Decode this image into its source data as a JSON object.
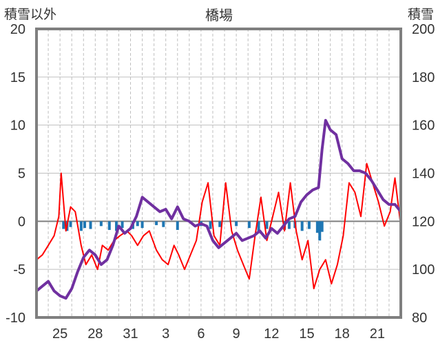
{
  "chart_data": {
    "type": "line",
    "title": "橋場",
    "ylabel_left": "積雪以外",
    "ylabel_right": "積雪",
    "ylim_left": [
      -10,
      20
    ],
    "ylim_right": [
      80,
      200
    ],
    "left_ticks": [
      -10,
      -5,
      0,
      5,
      10,
      15,
      20
    ],
    "right_ticks": [
      80,
      100,
      120,
      140,
      160,
      180,
      200
    ],
    "x_range": [
      23,
      54
    ],
    "x_tick_labels": [
      "25",
      "28",
      "31",
      "3",
      "6",
      "9",
      "12",
      "15",
      "18",
      "21"
    ],
    "x_tick_positions": [
      25,
      28,
      31,
      34,
      37,
      40,
      43,
      46,
      49,
      52
    ],
    "grid_vertical_dashed": true,
    "series": [
      {
        "axis": "left",
        "type": "bar",
        "color": "#1f77b4",
        "x": [
          25.3,
          25.6,
          25.9,
          26.8,
          27.1,
          27.6,
          28.5,
          29.2,
          29.8,
          30.3,
          31.2,
          31.6,
          32.0,
          33.2,
          33.8,
          35.0,
          37.0,
          37.8,
          38.6,
          40.0,
          41.1,
          41.9,
          42.6,
          44.1,
          44.5,
          45.0,
          45.6,
          46.2,
          46.9,
          47.1,
          47.3
        ],
        "values": [
          -0.8,
          -1.0,
          -0.6,
          -1.0,
          -0.7,
          -0.8,
          -0.5,
          -0.9,
          -1.0,
          -0.7,
          -0.8,
          -0.5,
          -0.7,
          -0.4,
          -0.6,
          -0.9,
          -0.5,
          -0.8,
          -0.6,
          -0.5,
          -0.7,
          -1.0,
          -0.8,
          -0.9,
          -0.8,
          -0.7,
          -1.0,
          -0.8,
          -1.2,
          -2.0,
          -1.1
        ]
      },
      {
        "axis": "left",
        "type": "line",
        "color": "#ff0000",
        "x": [
          23,
          23.5,
          24,
          24.5,
          24.9,
          25.1,
          25.5,
          25.9,
          26.3,
          26.8,
          27.2,
          27.7,
          28.2,
          28.6,
          29.1,
          29.6,
          30.1,
          30.7,
          31.1,
          31.6,
          32.1,
          32.6,
          33.2,
          33.7,
          34.2,
          34.7,
          35.1,
          35.6,
          36.1,
          36.6,
          37.1,
          37.6,
          38.1,
          38.6,
          39.1,
          39.6,
          40.1,
          40.6,
          41.1,
          41.6,
          42.1,
          42.6,
          43.1,
          43.6,
          44.1,
          44.6,
          45.1,
          45.6,
          46.1,
          46.6,
          47.1,
          47.6,
          48.1,
          48.6,
          49.1,
          49.6,
          50.1,
          50.6,
          51.1,
          51.6,
          52.1,
          52.6,
          53.1,
          53.5,
          54.0
        ],
        "values": [
          -4.0,
          -3.5,
          -2.5,
          -1.5,
          0.5,
          5.0,
          -1.0,
          1.5,
          1.0,
          -2.5,
          -4.5,
          -3.5,
          -5.0,
          -2.5,
          -3.0,
          -2.0,
          -1.5,
          -1.0,
          -1.5,
          -2.5,
          -1.5,
          -1.0,
          -3.0,
          -4.0,
          -4.5,
          -2.5,
          -3.5,
          -5.0,
          -3.5,
          -2.0,
          2.0,
          4.0,
          -1.5,
          -2.5,
          4.0,
          -1.0,
          -3.0,
          -4.5,
          -6.0,
          -1.5,
          2.5,
          -2.0,
          0.5,
          3.0,
          -1.0,
          4.0,
          -1.0,
          -4.0,
          -2.0,
          -7.0,
          -5.0,
          -4.0,
          -6.5,
          -4.5,
          -1.5,
          4.0,
          3.0,
          0.5,
          6.0,
          4.0,
          2.0,
          -0.5,
          1.0,
          4.5,
          -0.5
        ]
      },
      {
        "axis": "right",
        "type": "line",
        "color": "#7030a0",
        "x": [
          23,
          23.5,
          24,
          24.5,
          25,
          25.5,
          26,
          26.5,
          27,
          27.5,
          28,
          28.5,
          29,
          29.5,
          30,
          30.5,
          31,
          31.5,
          32,
          32.5,
          33,
          33.5,
          34,
          34.5,
          35,
          35.5,
          36,
          36.5,
          37,
          37.5,
          38,
          38.5,
          39,
          39.5,
          40,
          40.5,
          41,
          41.5,
          42,
          42.5,
          43,
          43.5,
          44,
          44.5,
          45,
          45.5,
          46,
          46.5,
          47,
          47.3,
          47.6,
          48,
          48.5,
          49,
          49.5,
          50,
          50.5,
          51,
          51.5,
          52,
          52.5,
          53,
          53.5,
          54
        ],
        "values": [
          91,
          93,
          95,
          91,
          89,
          88,
          92,
          99,
          105,
          108,
          106,
          102,
          104,
          110,
          118,
          115,
          117,
          122,
          130,
          128,
          126,
          124,
          125,
          121,
          126,
          121,
          120,
          118,
          119,
          118,
          112,
          109,
          111,
          113,
          115,
          112,
          113,
          114,
          116,
          113,
          117,
          115,
          118,
          121,
          122,
          128,
          131,
          133,
          134,
          150,
          162,
          158,
          156,
          146,
          144,
          141,
          141,
          140,
          137,
          133,
          129,
          127,
          127,
          124
        ]
      }
    ]
  }
}
